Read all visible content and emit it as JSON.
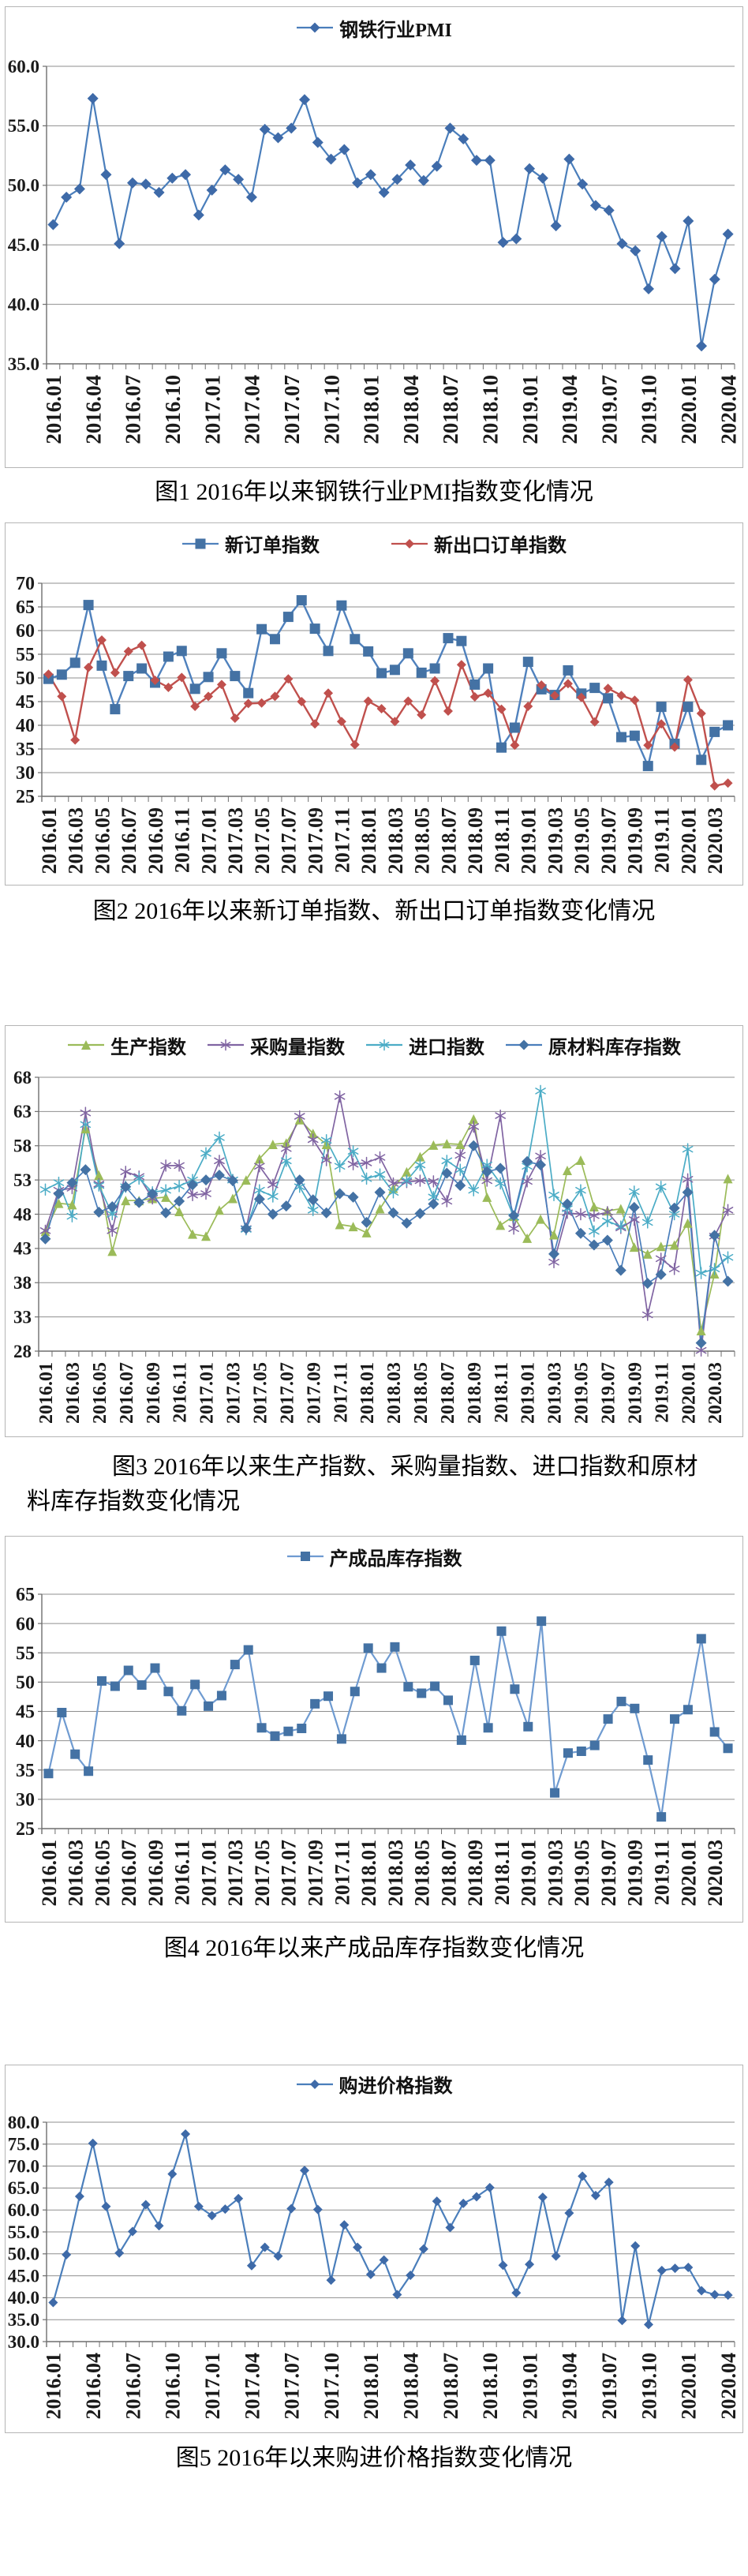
{
  "page": {
    "background": "#ffffff",
    "frame_color": "#b5b5b5",
    "grid_color": "#8f8f8f",
    "axis_color": "#6e6e6e"
  },
  "chart_data": [
    {
      "type": "line",
      "caption": "图1 2016年以来钢铁行业PMI指数变化情况",
      "ylim": [
        35,
        60
      ],
      "y_step": 5,
      "y_decimals": 1,
      "x_tick_step": 3,
      "grid": true,
      "legend_position": "top",
      "categories": [
        "2016.01",
        "2016.02",
        "2016.03",
        "2016.04",
        "2016.05",
        "2016.06",
        "2016.07",
        "2016.08",
        "2016.09",
        "2016.10",
        "2016.11",
        "2016.12",
        "2017.01",
        "2017.02",
        "2017.03",
        "2017.04",
        "2017.05",
        "2017.06",
        "2017.07",
        "2017.08",
        "2017.09",
        "2017.10",
        "2017.11",
        "2017.12",
        "2018.01",
        "2018.02",
        "2018.03",
        "2018.04",
        "2018.05",
        "2018.06",
        "2018.07",
        "2018.08",
        "2018.09",
        "2018.10",
        "2018.11",
        "2018.12",
        "2019.01",
        "2019.02",
        "2019.03",
        "2019.04",
        "2019.05",
        "2019.06",
        "2019.07",
        "2019.08",
        "2019.09",
        "2019.10",
        "2019.11",
        "2019.12",
        "2020.01",
        "2020.02",
        "2020.03",
        "2020.04"
      ],
      "series": [
        {
          "name": "钢铁行业PMI",
          "marker": "diamond",
          "marker_size": 7,
          "color": "#3e6aa8",
          "line_color": "#4a7ebb",
          "values": [
            46.7,
            49.0,
            49.7,
            57.3,
            50.9,
            45.1,
            50.2,
            50.1,
            49.4,
            50.6,
            50.9,
            47.5,
            49.6,
            51.3,
            50.5,
            49.0,
            54.7,
            54.0,
            54.8,
            57.2,
            53.6,
            52.2,
            53.0,
            50.2,
            50.9,
            49.4,
            50.5,
            51.7,
            50.4,
            51.6,
            54.8,
            53.9,
            52.1,
            52.1,
            45.2,
            45.5,
            51.4,
            50.6,
            46.6,
            52.2,
            50.1,
            48.3,
            47.9,
            45.1,
            44.5,
            41.3,
            45.7,
            43.0,
            47.0,
            36.5,
            42.1,
            45.9
          ]
        }
      ]
    },
    {
      "type": "line",
      "caption": "图2 2016年以来新订单指数、新出口订单指数变化情况",
      "ylim": [
        25,
        70
      ],
      "y_step": 5,
      "y_decimals": 0,
      "x_tick_step": 2,
      "grid": true,
      "legend_position": "top",
      "categories_same_as_chart": 0,
      "series": [
        {
          "name": "新订单指数",
          "marker": "square",
          "marker_size": 6.5,
          "color": "#4472a4",
          "line_color": "#4f81bd",
          "values": [
            49.8,
            50.7,
            53.2,
            65.4,
            52.6,
            43.4,
            50.4,
            52.0,
            49.0,
            54.5,
            55.7,
            47.7,
            50.2,
            55.2,
            50.4,
            46.8,
            60.3,
            58.2,
            62.9,
            66.4,
            60.4,
            55.7,
            65.3,
            58.2,
            55.6,
            51.0,
            51.7,
            55.2,
            51.1,
            52.0,
            58.4,
            57.8,
            48.6,
            52.0,
            35.3,
            39.5,
            53.4,
            47.6,
            46.4,
            51.6,
            46.7,
            47.9,
            45.7,
            37.5,
            37.8,
            31.4,
            43.9,
            36.1,
            43.9,
            32.7,
            38.6,
            40.0
          ]
        },
        {
          "name": "新出口订单指数",
          "marker": "diamond",
          "marker_size": 6,
          "color": "#c0504d",
          "line_color": "#c0504d",
          "values": [
            50.8,
            46.1,
            36.9,
            52.2,
            58.0,
            51.1,
            55.6,
            56.9,
            49.5,
            48.0,
            50.1,
            44.0,
            46.1,
            48.6,
            41.5,
            44.6,
            44.7,
            46.1,
            49.8,
            45.0,
            40.3,
            46.8,
            40.8,
            35.9,
            45.1,
            43.5,
            40.8,
            45.1,
            42.2,
            49.4,
            43.0,
            52.8,
            46.0,
            46.8,
            43.4,
            35.8,
            44.0,
            48.5,
            46.3,
            48.8,
            45.9,
            40.7,
            47.8,
            46.3,
            45.3,
            35.8,
            40.3,
            35.4,
            49.6,
            42.5,
            27.2,
            27.8
          ]
        }
      ]
    },
    {
      "type": "line",
      "caption": "图3 2016年以来生产指数、采购量指数、进口指数和原材料库存指数变化情况",
      "ylim": [
        28,
        68
      ],
      "y_step": 5,
      "y_decimals": 0,
      "x_tick_step": 2,
      "grid": true,
      "legend_position": "top",
      "categories_same_as_chart": 0,
      "series": [
        {
          "name": "生产指数",
          "marker": "triangle",
          "marker_size": 6,
          "color": "#9bbb59",
          "line_color": "#9bbb59",
          "values": [
            45.5,
            49.6,
            49.4,
            60.5,
            53.7,
            42.6,
            50.0,
            50.0,
            50.3,
            50.5,
            48.4,
            45.1,
            44.8,
            48.6,
            50.3,
            53.0,
            56.1,
            58.2,
            58.4,
            61.8,
            59.8,
            58.2,
            46.5,
            46.2,
            45.3,
            48.8,
            51.8,
            54.2,
            56.4,
            58.1,
            58.3,
            58.2,
            61.9,
            50.5,
            46.4,
            47.7,
            44.5,
            47.3,
            45.0,
            54.4,
            55.9,
            49.1,
            48.5,
            48.8,
            43.2,
            42.2,
            43.3,
            43.5,
            46.7,
            31.0,
            39.3,
            53.2
          ]
        },
        {
          "name": "采购量指数",
          "marker": "asterisk",
          "marker_size": 7,
          "color": "#8064a2",
          "line_color": "#8064a2",
          "values": [
            45.6,
            51.5,
            51.8,
            62.8,
            52.4,
            45.6,
            54.2,
            53.5,
            50.3,
            55.1,
            55.1,
            50.8,
            51.0,
            55.8,
            53.0,
            45.9,
            55.0,
            52.3,
            57.6,
            62.3,
            58.9,
            55.9,
            65.2,
            55.3,
            55.5,
            56.3,
            52.5,
            52.7,
            52.9,
            52.8,
            49.9,
            56.6,
            60.8,
            52.9,
            62.4,
            45.9,
            52.8,
            56.5,
            41.0,
            48.2,
            48.0,
            47.8,
            48.3,
            46.0,
            47.2,
            33.3,
            41.5,
            40.0,
            53.1,
            28.1,
            44.8,
            48.6
          ]
        },
        {
          "name": "进口指数",
          "marker": "asterisk",
          "marker_size": 7,
          "color": "#4bacc6",
          "line_color": "#4bacc6",
          "values": [
            51.6,
            52.6,
            47.7,
            61.1,
            52.2,
            48.0,
            52.0,
            53.2,
            51.2,
            51.5,
            52.1,
            53.0,
            56.9,
            59.2,
            53.0,
            45.8,
            51.5,
            50.6,
            55.8,
            52.0,
            48.6,
            58.8,
            55.0,
            57.2,
            53.2,
            53.8,
            51.2,
            52.9,
            55.2,
            50.5,
            55.8,
            54.5,
            51.5,
            55.2,
            52.5,
            47.6,
            55.0,
            66.0,
            50.8,
            48.8,
            51.5,
            45.5,
            47.0,
            46.2,
            51.3,
            46.8,
            52.0,
            48.0,
            57.5,
            39.4,
            40.0,
            41.7
          ]
        },
        {
          "name": "原材料库存指数",
          "marker": "diamond",
          "marker_size": 7,
          "color": "#4472a4",
          "line_color": "#4a7ebb",
          "values": [
            44.4,
            51.0,
            52.6,
            54.5,
            48.3,
            49.1,
            52.0,
            49.7,
            51.0,
            48.2,
            49.9,
            52.3,
            53.0,
            53.7,
            52.9,
            45.9,
            50.2,
            48.0,
            49.2,
            53.0,
            50.1,
            48.2,
            51.0,
            50.5,
            46.8,
            51.2,
            48.2,
            46.7,
            48.1,
            49.5,
            54.0,
            52.2,
            58.0,
            54.2,
            54.7,
            47.8,
            55.7,
            55.2,
            42.2,
            49.5,
            45.2,
            43.5,
            44.2,
            39.8,
            49.0,
            37.9,
            39.2,
            48.9,
            51.2,
            29.2,
            44.9,
            38.2
          ]
        }
      ]
    },
    {
      "type": "line",
      "caption": "图4 2016年以来产成品库存指数变化情况",
      "ylim": [
        25,
        65
      ],
      "y_step": 5,
      "y_decimals": 0,
      "x_tick_step": 2,
      "grid": true,
      "legend_position": "top",
      "categories_same_as_chart": 0,
      "series": [
        {
          "name": "产成品库存指数",
          "marker": "square",
          "marker_size": 6,
          "color": "#4472a4",
          "line_color": "#6f9bd1",
          "values": [
            34.4,
            44.8,
            37.7,
            34.8,
            50.2,
            49.3,
            52.0,
            49.5,
            52.4,
            48.4,
            45.1,
            49.6,
            45.9,
            47.7,
            53.0,
            55.5,
            42.2,
            40.8,
            41.6,
            42.1,
            46.3,
            47.6,
            40.3,
            48.4,
            55.8,
            52.4,
            56.0,
            49.2,
            48.1,
            49.3,
            46.9,
            40.1,
            53.7,
            42.2,
            58.7,
            48.8,
            42.4,
            60.4,
            31.1,
            37.9,
            38.2,
            39.2,
            43.7,
            46.7,
            45.5,
            36.7,
            27.0,
            43.7,
            45.3,
            57.4,
            41.5,
            38.7
          ]
        }
      ]
    },
    {
      "type": "line",
      "caption": "图5 2016年以来购进价格指数变化情况",
      "ylim": [
        30,
        80
      ],
      "y_step": 5,
      "y_decimals": 1,
      "x_tick_step": 3,
      "grid": true,
      "legend_position": "top",
      "categories_same_as_chart": 0,
      "series": [
        {
          "name": "购进价格指数",
          "marker": "diamond",
          "marker_size": 6,
          "color": "#3e6aa8",
          "line_color": "#4a7ebb",
          "values": [
            38.9,
            49.8,
            63.1,
            75.2,
            60.8,
            50.2,
            55.1,
            61.2,
            56.4,
            68.2,
            77.3,
            60.8,
            58.7,
            60.2,
            62.6,
            47.3,
            51.5,
            49.5,
            60.3,
            69.0,
            60.1,
            44.0,
            56.6,
            51.5,
            45.3,
            48.6,
            40.7,
            45.1,
            51.1,
            62.0,
            56.0,
            61.5,
            63.0,
            65.1,
            47.4,
            41.1,
            47.6,
            62.9,
            49.5,
            59.3,
            67.7,
            63.3,
            66.3,
            34.8,
            51.8,
            33.9,
            46.2,
            46.7,
            46.9,
            41.6,
            40.7,
            40.6
          ]
        }
      ]
    }
  ]
}
